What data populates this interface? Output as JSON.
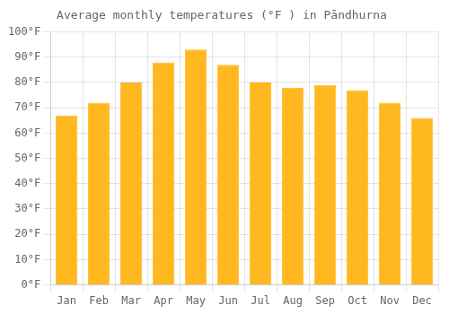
{
  "chart_data": {
    "type": "bar",
    "title": "Average monthly temperatures (°F ) in Pāndhurna",
    "categories": [
      "Jan",
      "Feb",
      "Mar",
      "Apr",
      "May",
      "Jun",
      "Jul",
      "Aug",
      "Sep",
      "Oct",
      "Nov",
      "Dec"
    ],
    "values": [
      67,
      72,
      80,
      88,
      93,
      87,
      80,
      78,
      79,
      77,
      72,
      66
    ],
    "color": "#FFB820",
    "ylim": [
      0,
      100
    ],
    "yticks": [
      {
        "value": 0,
        "label": "0°F"
      },
      {
        "value": 10,
        "label": "10°F"
      },
      {
        "value": 20,
        "label": "20°F"
      },
      {
        "value": 30,
        "label": "30°F"
      },
      {
        "value": 40,
        "label": "40°F"
      },
      {
        "value": 50,
        "label": "50°F"
      },
      {
        "value": 60,
        "label": "60°F"
      },
      {
        "value": 70,
        "label": "70°F"
      },
      {
        "value": 80,
        "label": "80°F"
      },
      {
        "value": 90,
        "label": "90°F"
      },
      {
        "value": 100,
        "label": "100°F"
      }
    ],
    "grid": true
  }
}
